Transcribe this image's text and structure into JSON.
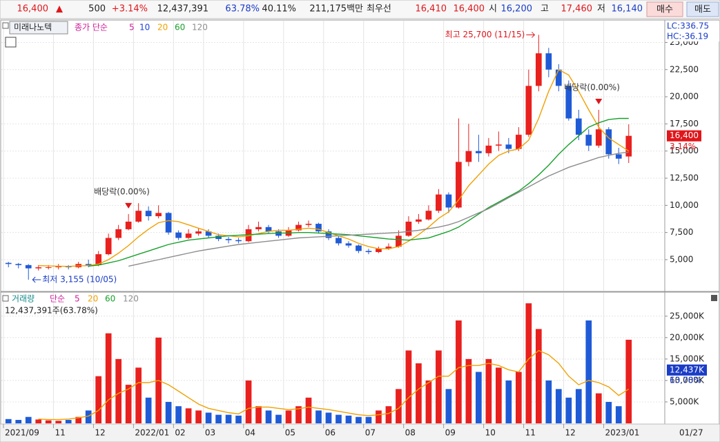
{
  "quote": {
    "price": "16,400",
    "arrow": "▲",
    "change": "500",
    "change_pct": "+3.14%",
    "volume": "12,437,391",
    "volume_ratio": "63.78%",
    "turnover": "40.11%",
    "amount": "211,175백만",
    "best_label": "최우선",
    "ask": "16,410",
    "bid": "16,400",
    "open_label": "시",
    "open": "16,200",
    "high_label": "고",
    "high": "17,460",
    "low_label": "저",
    "low": "16,140",
    "buy": "매수",
    "sell": "매도"
  },
  "chart_data": {
    "type": "candlestick",
    "stock_name": "미래나노텍",
    "legend_title": "종가 단순",
    "categories": [
      "2021/09",
      null,
      null,
      null,
      null,
      "11",
      null,
      null,
      null,
      "12",
      null,
      null,
      null,
      "2022/01",
      null,
      null,
      null,
      "02",
      null,
      null,
      "03",
      null,
      null,
      null,
      "04",
      null,
      null,
      null,
      "05",
      null,
      null,
      null,
      "06",
      null,
      null,
      null,
      "07",
      null,
      null,
      null,
      "08",
      null,
      null,
      null,
      "09",
      null,
      null,
      null,
      "10",
      null,
      null,
      null,
      "11",
      null,
      null,
      null,
      "12",
      null,
      null,
      null,
      "2023/01",
      null,
      null
    ],
    "open": [
      4700,
      4600,
      4500,
      4200,
      4300,
      4300,
      4400,
      4300,
      4600,
      4500,
      5500,
      7000,
      7800,
      8500,
      9500,
      9000,
      9300,
      7500,
      7000,
      7400,
      7600,
      7200,
      6900,
      6800,
      6700,
      7800,
      8000,
      7600,
      7200,
      7700,
      8200,
      8300,
      7600,
      7000,
      6500,
      6300,
      5800,
      5700,
      6000,
      6200,
      7200,
      8500,
      8700,
      9500,
      11000,
      9800,
      14000,
      15000,
      14800,
      15500,
      15600,
      15200,
      16500,
      21000,
      24000,
      22500,
      21000,
      18000,
      16500,
      15500,
      17000,
      14700,
      14500
    ],
    "high": [
      4800,
      4700,
      4600,
      4500,
      4500,
      4600,
      4500,
      4800,
      5000,
      5800,
      7400,
      8200,
      9200,
      10200,
      9900,
      10000,
      9400,
      7700,
      7800,
      7900,
      7800,
      7400,
      7100,
      7000,
      8200,
      8500,
      8200,
      7800,
      8000,
      8500,
      8600,
      8400,
      7800,
      7200,
      6700,
      6400,
      6000,
      6200,
      6500,
      7700,
      9000,
      9200,
      10000,
      11500,
      11200,
      18000,
      17500,
      16500,
      16200,
      16800,
      16200,
      17200,
      22500,
      25700,
      24500,
      23000,
      21500,
      18800,
      17000,
      18800,
      17200,
      15300,
      17460
    ],
    "low": [
      4300,
      4200,
      3155,
      4000,
      4100,
      4100,
      4100,
      4200,
      4300,
      4400,
      5400,
      6800,
      7700,
      8400,
      8600,
      8800,
      7300,
      6800,
      6900,
      7200,
      7000,
      6700,
      6500,
      6500,
      6600,
      7600,
      7400,
      7000,
      7100,
      7600,
      8000,
      7400,
      6800,
      6300,
      6100,
      5600,
      5500,
      5600,
      5900,
      6100,
      7100,
      8300,
      8600,
      9300,
      9300,
      9700,
      13600,
      14000,
      14500,
      15000,
      14800,
      15000,
      16300,
      20500,
      21800,
      20500,
      17800,
      16000,
      15000,
      15300,
      14300,
      13800,
      13900
    ],
    "close": [
      4600,
      4500,
      4200,
      4300,
      4300,
      4400,
      4300,
      4600,
      4500,
      5500,
      7000,
      7800,
      8500,
      9500,
      9000,
      9300,
      7500,
      7000,
      7400,
      7600,
      7200,
      6900,
      6800,
      6700,
      7800,
      8000,
      7600,
      7200,
      7700,
      8200,
      8300,
      7600,
      7000,
      6500,
      6300,
      5800,
      5700,
      6000,
      6200,
      7200,
      8500,
      8700,
      9500,
      11000,
      9800,
      14000,
      15000,
      14800,
      15500,
      15600,
      15200,
      16500,
      21000,
      24000,
      22500,
      21000,
      18000,
      16500,
      15500,
      17000,
      14700,
      14300,
      16400
    ],
    "up_color": "#e8201e",
    "down_color": "#1f5bd6",
    "ylim": [
      2200,
      27000
    ],
    "yticks": [
      {
        "value": 5000,
        "label": "5,000"
      },
      {
        "value": 7500,
        "label": "7,500"
      },
      {
        "value": 10000,
        "label": "10,000"
      },
      {
        "value": 12500,
        "label": "12,500"
      },
      {
        "value": 15000,
        "label": "15,000"
      },
      {
        "value": 17500,
        "label": "17,500"
      },
      {
        "value": 20000,
        "label": "20,000"
      },
      {
        "value": 22500,
        "label": "22,500"
      },
      {
        "value": 25000,
        "label": "25,000"
      }
    ],
    "grid": true,
    "ma": [
      {
        "period": 5,
        "color": "#d01c9a"
      },
      {
        "period": 10,
        "color": "#1c3fd9"
      },
      {
        "period": 20,
        "color": "#f0a000",
        "values": [
          null,
          null,
          null,
          4450,
          4420,
          4400,
          4380,
          4420,
          4450,
          4600,
          5000,
          5600,
          6300,
          7100,
          7800,
          8400,
          8600,
          8500,
          8200,
          7900,
          7600,
          7300,
          7200,
          7100,
          7200,
          7400,
          7600,
          7700,
          7700,
          7800,
          7900,
          7800,
          7500,
          7200,
          6900,
          6500,
          6200,
          6000,
          6000,
          6200,
          6700,
          7300,
          8000,
          8800,
          9400,
          10500,
          11800,
          12800,
          13800,
          14600,
          15000,
          15200,
          16000,
          18000,
          20500,
          22500,
          22000,
          20500,
          18800,
          17200,
          16200,
          15600,
          15000
        ]
      },
      {
        "period": 60,
        "color": "#17a02a",
        "values": [
          null,
          null,
          null,
          null,
          null,
          null,
          null,
          null,
          4400,
          4500,
          4700,
          4900,
          5200,
          5500,
          5800,
          6100,
          6400,
          6600,
          6800,
          6900,
          7000,
          7100,
          7200,
          7250,
          7300,
          7350,
          7400,
          7450,
          7450,
          7500,
          7500,
          7450,
          7400,
          7350,
          7300,
          7200,
          7100,
          7000,
          6900,
          6850,
          6800,
          6900,
          7000,
          7300,
          7600,
          8000,
          8600,
          9200,
          9800,
          10300,
          10800,
          11300,
          12000,
          12800,
          13700,
          14700,
          15600,
          16400,
          17200,
          17600,
          17900,
          18000,
          18000
        ]
      },
      {
        "period": 120,
        "color": "#8c8c8c",
        "values": [
          null,
          null,
          null,
          null,
          null,
          null,
          null,
          null,
          null,
          null,
          null,
          null,
          4400,
          4600,
          4800,
          5000,
          5200,
          5400,
          5600,
          5800,
          5950,
          6100,
          6250,
          6400,
          6500,
          6600,
          6700,
          6800,
          6900,
          7000,
          7050,
          7100,
          7150,
          7200,
          7250,
          7300,
          7350,
          7400,
          7450,
          7500,
          7600,
          7700,
          7850,
          8000,
          8200,
          8500,
          8900,
          9300,
          9700,
          10200,
          10700,
          11200,
          11700,
          12200,
          12700,
          13100,
          13500,
          13800,
          14100,
          14400,
          14600,
          14800,
          14900
        ]
      }
    ],
    "annotations": {
      "high": "최고 25,700 (11/15)",
      "low": "최저 3,155 (10/05)",
      "dividends": [
        "배당락(0.00%)",
        "배당락(0.00%)"
      ]
    },
    "lc": "LC:336.75",
    "hc": "HC:-36.19",
    "last_price": {
      "value": 16400,
      "label": "16,400"
    },
    "last_change": "3.14%",
    "date_label": "01/27",
    "volume": {
      "title": "거래량",
      "legend_title": "단순",
      "caption": "12,437,391주(63.78%)",
      "values": [
        1000,
        800,
        1500,
        900,
        700,
        600,
        800,
        1500,
        3000,
        11000,
        21000,
        15000,
        9000,
        13000,
        6000,
        20000,
        5000,
        4000,
        3500,
        3000,
        2500,
        2000,
        2000,
        1800,
        10000,
        4000,
        3000,
        2000,
        3000,
        4000,
        6000,
        3000,
        2500,
        2000,
        1800,
        1500,
        1500,
        3000,
        4000,
        8000,
        17000,
        14000,
        10000,
        17000,
        8000,
        24000,
        15000,
        12000,
        15000,
        13000,
        10000,
        12000,
        28000,
        22000,
        10000,
        8000,
        6000,
        8000,
        24000,
        7000,
        5000,
        4000,
        19500
      ],
      "ylim": [
        0,
        29800
      ],
      "yticks": [
        {
          "value": 5000,
          "label": "5,000K"
        },
        {
          "value": 10000,
          "label": "10,000K"
        },
        {
          "value": 15000,
          "label": "15,000K"
        },
        {
          "value": 20000,
          "label": "20,000K"
        },
        {
          "value": 25000,
          "label": "25,000K"
        }
      ],
      "ma": [
        {
          "period": 5,
          "color": "#d01c9a"
        },
        {
          "period": 20,
          "color": "#f0a000",
          "values": [
            null,
            null,
            null,
            1000,
            900,
            900,
            1000,
            1300,
            1700,
            3000,
            5500,
            7000,
            8000,
            9500,
            9500,
            10000,
            9000,
            7500,
            6000,
            4500,
            3500,
            3000,
            2500,
            2200,
            3500,
            3800,
            3800,
            3500,
            3200,
            3400,
            3800,
            3500,
            3200,
            2800,
            2400,
            2000,
            1800,
            2000,
            2300,
            3500,
            6000,
            8000,
            9500,
            11000,
            11000,
            13000,
            13500,
            13500,
            14000,
            13500,
            12500,
            12000,
            15000,
            17000,
            16000,
            14000,
            11000,
            9000,
            10000,
            9500,
            8500,
            6500,
            8000
          ]
        },
        {
          "period": 60,
          "color": "#17a02a"
        },
        {
          "period": 120,
          "color": "#8c8c8c"
        }
      ],
      "last": {
        "value": 12437,
        "label": "12,437K"
      },
      "last_pct": "63.78%"
    }
  }
}
